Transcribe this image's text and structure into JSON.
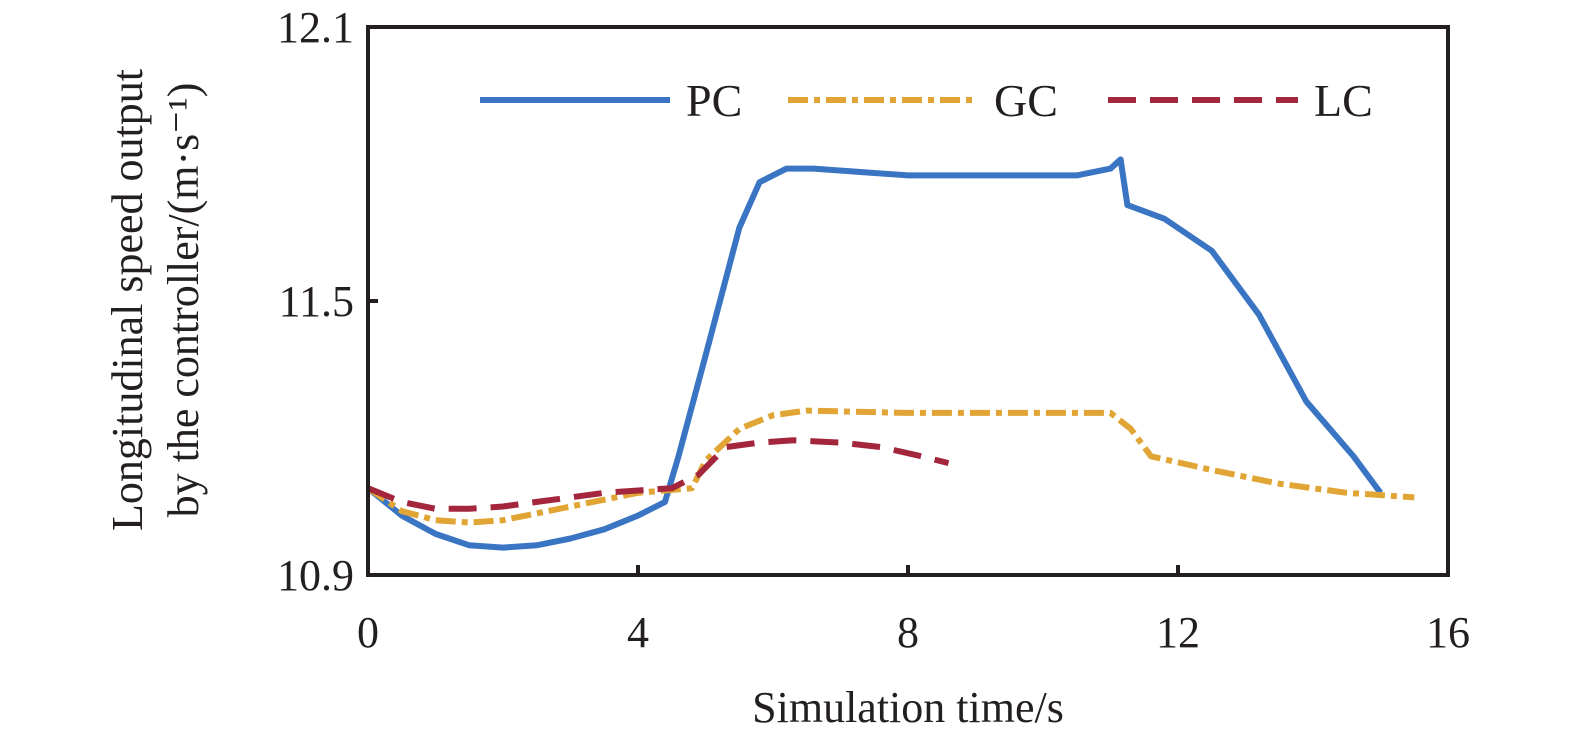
{
  "chart_data": {
    "type": "line",
    "xlabel": "Simulation time/s",
    "ylabel": "Longitudinal speed output by the controller/(m·s⁻¹)",
    "ylabel_lines": [
      "Longitudinal speed output",
      "by the controller/(m·s⁻¹)"
    ],
    "xlim": [
      0,
      16
    ],
    "ylim": [
      10.9,
      12.1
    ],
    "xticks": [
      0,
      4,
      8,
      12,
      16
    ],
    "yticks": [
      10.9,
      11.5,
      12.1
    ],
    "xtick_labels": [
      "0",
      "4",
      "8",
      "12",
      "16"
    ],
    "ytick_labels": [
      "10.9",
      "11.5",
      "12.1"
    ],
    "grid": false,
    "legend_position": "top",
    "series": [
      {
        "name": "PC",
        "color": "#3a75c4",
        "dash": "solid",
        "points": [
          [
            0,
            11.09
          ],
          [
            0.5,
            11.03
          ],
          [
            1.0,
            10.99
          ],
          [
            1.5,
            10.965
          ],
          [
            2.0,
            10.96
          ],
          [
            2.5,
            10.965
          ],
          [
            3.0,
            10.98
          ],
          [
            3.5,
            11.0
          ],
          [
            4.0,
            11.03
          ],
          [
            4.4,
            11.06
          ],
          [
            4.6,
            11.16
          ],
          [
            5.0,
            11.38
          ],
          [
            5.5,
            11.66
          ],
          [
            5.8,
            11.76
          ],
          [
            6.2,
            11.79
          ],
          [
            6.6,
            11.79
          ],
          [
            8.0,
            11.775
          ],
          [
            10.5,
            11.775
          ],
          [
            11.0,
            11.79
          ],
          [
            11.15,
            11.81
          ],
          [
            11.25,
            11.71
          ],
          [
            11.8,
            11.68
          ],
          [
            12.5,
            11.61
          ],
          [
            13.2,
            11.47
          ],
          [
            13.9,
            11.28
          ],
          [
            14.6,
            11.16
          ],
          [
            15.0,
            11.08
          ]
        ]
      },
      {
        "name": "GC",
        "color": "#e0a534",
        "dash": "dashdot",
        "points": [
          [
            0,
            11.09
          ],
          [
            0.5,
            11.04
          ],
          [
            1.0,
            11.02
          ],
          [
            1.5,
            11.015
          ],
          [
            2.0,
            11.02
          ],
          [
            3.0,
            11.05
          ],
          [
            4.0,
            11.08
          ],
          [
            4.8,
            11.09
          ],
          [
            5.0,
            11.15
          ],
          [
            5.5,
            11.22
          ],
          [
            6.0,
            11.25
          ],
          [
            6.5,
            11.26
          ],
          [
            8.0,
            11.255
          ],
          [
            10.5,
            11.255
          ],
          [
            11.0,
            11.255
          ],
          [
            11.3,
            11.22
          ],
          [
            11.6,
            11.16
          ],
          [
            12.5,
            11.13
          ],
          [
            13.5,
            11.1
          ],
          [
            14.5,
            11.08
          ],
          [
            15.5,
            11.07
          ]
        ]
      },
      {
        "name": "LC",
        "color": "#a3263d",
        "dash": "dashed",
        "points": [
          [
            0,
            11.09
          ],
          [
            0.5,
            11.06
          ],
          [
            1.0,
            11.045
          ],
          [
            1.5,
            11.045
          ],
          [
            2.0,
            11.05
          ],
          [
            2.5,
            11.06
          ],
          [
            3.0,
            11.07
          ],
          [
            3.5,
            11.08
          ],
          [
            4.0,
            11.085
          ],
          [
            4.5,
            11.09
          ],
          [
            4.9,
            11.12
          ],
          [
            5.3,
            11.18
          ],
          [
            5.8,
            11.19
          ],
          [
            6.3,
            11.195
          ],
          [
            7.0,
            11.19
          ],
          [
            7.6,
            11.18
          ],
          [
            8.2,
            11.16
          ],
          [
            8.6,
            11.145
          ]
        ]
      }
    ]
  }
}
